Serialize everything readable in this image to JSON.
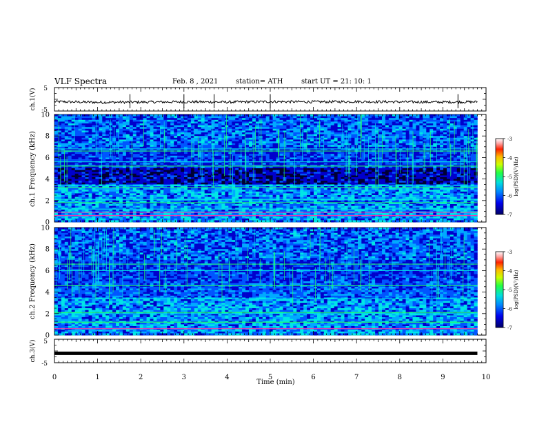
{
  "header": {
    "title": "VLF Spectra",
    "date": "Feb. 8 , 2021",
    "station": "station= ATH",
    "start": "start UT = 21: 10: 1"
  },
  "colors": {
    "colormap": [
      "#000033",
      "#0000cc",
      "#0055ff",
      "#00aaff",
      "#00e6e6",
      "#22ff66",
      "#ccff00",
      "#ffcc00",
      "#ff3300",
      "#cc0000",
      "#ffffff"
    ],
    "trace": "#000000"
  },
  "chart_data": [
    {
      "type": "line",
      "panel": "ch1-voltage",
      "ylabel": "ch.1(V)",
      "ylim": [
        -5,
        5
      ],
      "yticks": [
        "5",
        "-5"
      ],
      "xlim": [
        0,
        10
      ],
      "series": [
        {
          "x": [
            0,
            1,
            2,
            3,
            4,
            5,
            6,
            7,
            8,
            9,
            9.8
          ],
          "y": [
            -1.0,
            -1.3,
            -1.2,
            -1.1,
            -1.2,
            -1.0,
            -1.1,
            -1.0,
            -1.1,
            -1.2,
            -1.1
          ]
        }
      ],
      "spikes_min": [
        1.75,
        3.0,
        3.7,
        5.0,
        9.35
      ]
    },
    {
      "type": "heatmap",
      "panel": "ch1-spectrogram",
      "ylabel": "ch.1 Frequency (kHz)",
      "ylim": [
        0,
        10
      ],
      "yticks": [
        "0",
        "2",
        "4",
        "6",
        "8",
        "10"
      ],
      "xlim": [
        0,
        10
      ],
      "data_xlim": [
        0,
        9.8
      ],
      "colorbar": {
        "label": "log(PSD)(V²/Hz)",
        "range": [
          -7,
          -3
        ],
        "ticks": [
          "-3",
          "-4",
          "-5",
          "-6",
          "-7"
        ]
      },
      "bands_khz": [
        0.6,
        0.9,
        1.2,
        1.8,
        2.1,
        3.2,
        3.4,
        5.2,
        5.6,
        6.6,
        6.8
      ]
    },
    {
      "type": "heatmap",
      "panel": "ch2-spectrogram",
      "ylabel": "ch.2 Frequency (kHz)",
      "ylim": [
        0,
        10
      ],
      "yticks": [
        "0",
        "2",
        "4",
        "6",
        "8",
        "10"
      ],
      "xlim": [
        0,
        10
      ],
      "data_xlim": [
        0,
        9.8
      ],
      "colorbar": {
        "label": "log(PSD)(V²/Hz)",
        "range": [
          -7,
          -3
        ],
        "ticks": [
          "-3",
          "-4",
          "-5",
          "-6",
          "-7"
        ]
      },
      "bands_khz": [
        0.6,
        1.2,
        2.0,
        2.1,
        3.4,
        4.6,
        6.0,
        6.6
      ]
    },
    {
      "type": "line",
      "panel": "ch3-voltage",
      "ylabel": "ch.3(V)",
      "ylim": [
        -5,
        5
      ],
      "yticks": [
        "5",
        "-5"
      ],
      "xlim": [
        0,
        10
      ],
      "xlabel": "Time (min)",
      "xticks": [
        "0",
        "1",
        "2",
        "3",
        "4",
        "5",
        "6",
        "7",
        "8",
        "9",
        "10"
      ],
      "series": [
        {
          "x": [
            0,
            9.8
          ],
          "y": [
            -1.0,
            -1.0
          ]
        }
      ]
    }
  ]
}
